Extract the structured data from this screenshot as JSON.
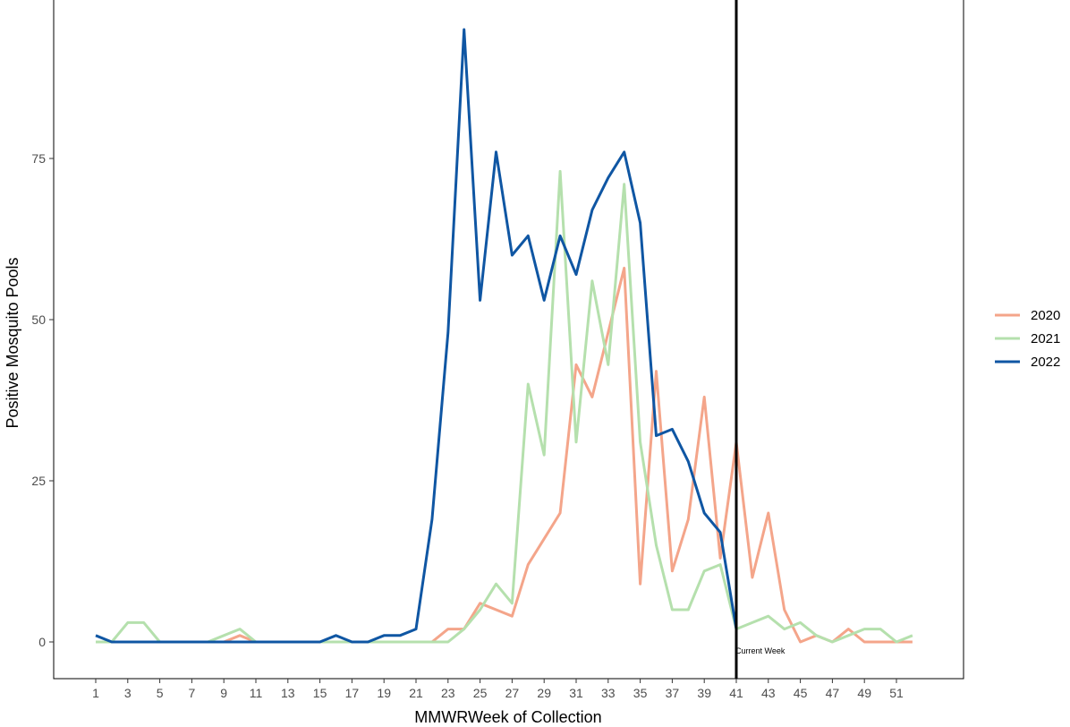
{
  "chart_data": {
    "type": "line",
    "title": "",
    "xlabel": "MMWRWeek of Collection",
    "ylabel": "Positive Mosquito Pools",
    "xlim": [
      1,
      52
    ],
    "ylim": [
      -5,
      100
    ],
    "x_ticks": [
      1,
      3,
      5,
      7,
      9,
      11,
      13,
      15,
      17,
      19,
      21,
      23,
      25,
      27,
      29,
      31,
      33,
      35,
      37,
      39,
      41,
      43,
      45,
      47,
      49,
      51
    ],
    "y_ticks": [
      0,
      25,
      50,
      75
    ],
    "grid": false,
    "legend_position": "right",
    "series": [
      {
        "name": "2020",
        "color": "#f4a58a",
        "x": [
          1,
          2,
          3,
          4,
          5,
          6,
          7,
          8,
          9,
          10,
          11,
          12,
          13,
          14,
          15,
          16,
          17,
          18,
          19,
          20,
          21,
          22,
          23,
          24,
          25,
          26,
          27,
          28,
          29,
          30,
          31,
          32,
          33,
          34,
          35,
          36,
          37,
          38,
          39,
          40,
          41,
          42,
          43,
          44,
          45,
          46,
          47,
          48,
          49,
          50,
          51,
          52
        ],
        "values": [
          0,
          0,
          0,
          0,
          0,
          0,
          0,
          0,
          0,
          1,
          0,
          0,
          0,
          0,
          0,
          0,
          0,
          0,
          0,
          0,
          0,
          0,
          2,
          2,
          6,
          5,
          4,
          12,
          16,
          20,
          43,
          38,
          48,
          58,
          9,
          42,
          11,
          19,
          38,
          13,
          31,
          10,
          20,
          5,
          0,
          1,
          0,
          2,
          0,
          0,
          0,
          0
        ]
      },
      {
        "name": "2021",
        "color": "#b5e0ad",
        "x": [
          1,
          2,
          3,
          4,
          5,
          6,
          7,
          8,
          9,
          10,
          11,
          12,
          13,
          14,
          15,
          16,
          17,
          18,
          19,
          20,
          21,
          22,
          23,
          24,
          25,
          26,
          27,
          28,
          29,
          30,
          31,
          32,
          33,
          34,
          35,
          36,
          37,
          38,
          39,
          40,
          41,
          42,
          43,
          44,
          45,
          46,
          47,
          48,
          49,
          50,
          51,
          52
        ],
        "values": [
          0,
          0,
          3,
          3,
          0,
          0,
          0,
          0,
          1,
          2,
          0,
          0,
          0,
          0,
          0,
          0,
          0,
          0,
          0,
          0,
          0,
          0,
          0,
          2,
          5,
          9,
          6,
          40,
          29,
          73,
          31,
          56,
          43,
          71,
          31,
          15,
          5,
          5,
          11,
          12,
          2,
          3,
          4,
          2,
          3,
          1,
          0,
          1,
          2,
          2,
          0,
          1
        ]
      },
      {
        "name": "2022",
        "color": "#0f56a3",
        "x": [
          1,
          2,
          3,
          4,
          5,
          6,
          7,
          8,
          9,
          10,
          11,
          12,
          13,
          14,
          15,
          16,
          17,
          18,
          19,
          20,
          21,
          22,
          23,
          24,
          25,
          26,
          27,
          28,
          29,
          30,
          31,
          32,
          33,
          34,
          35,
          36,
          37,
          38,
          39,
          40,
          41
        ],
        "values": [
          1,
          0,
          0,
          0,
          0,
          0,
          0,
          0,
          0,
          0,
          0,
          0,
          0,
          0,
          0,
          1,
          0,
          0,
          1,
          1,
          2,
          19,
          48,
          95,
          53,
          76,
          60,
          63,
          53,
          63,
          57,
          67,
          72,
          76,
          65,
          32,
          33,
          28,
          20,
          17,
          2
        ]
      }
    ],
    "reference_line": {
      "x": 41,
      "label": "Current Week",
      "color": "#000000"
    }
  }
}
